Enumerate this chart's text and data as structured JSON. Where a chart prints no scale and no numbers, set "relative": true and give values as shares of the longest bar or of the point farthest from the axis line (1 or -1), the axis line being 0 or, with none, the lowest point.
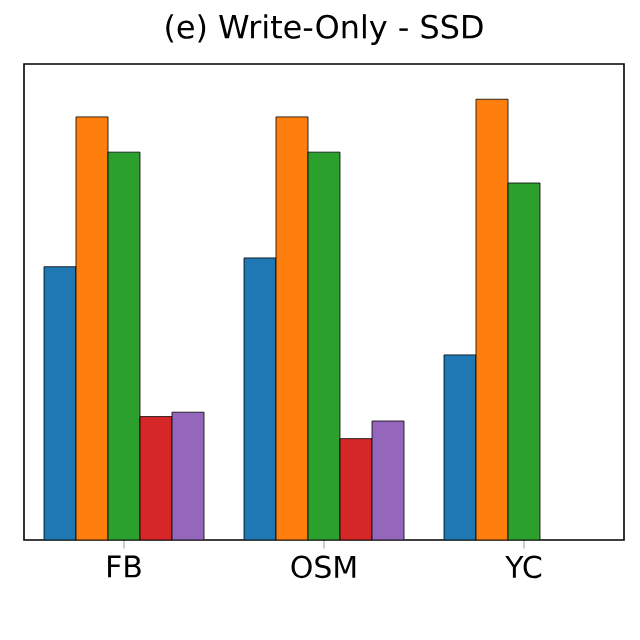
{
  "chart_data": {
    "type": "bar",
    "title": "(e) Write-Only - SSD",
    "relative": true,
    "categories": [
      "FB",
      "OSM",
      "YC"
    ],
    "series": [
      {
        "color": "#1f77b4",
        "values": [
          0.62,
          0.64,
          0.42
        ]
      },
      {
        "color": "#ff7f0e",
        "values": [
          0.96,
          0.96,
          1
        ]
      },
      {
        "color": "#2ca02c",
        "values": [
          0.88,
          0.88,
          0.81
        ]
      },
      {
        "color": "#d62728",
        "values": [
          0.28,
          0.23,
          null
        ]
      },
      {
        "color": "#9467bd",
        "values": [
          0.29,
          0.27,
          null
        ]
      }
    ]
  }
}
